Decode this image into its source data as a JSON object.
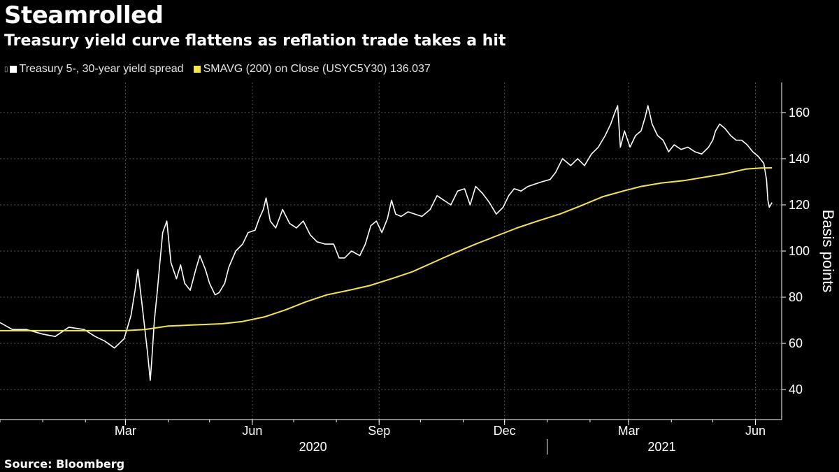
{
  "title": "Steamrolled",
  "subtitle": "Treasury yield curve flattens as reflation trade takes a hit",
  "legend": {
    "series1_label": "Treasury 5-, 30-year yield spread",
    "series2_label": "SMAVG (200)  on Close (USYC5Y30) 136.037"
  },
  "source": "Source: Bloomberg",
  "colors": {
    "background": "#000000",
    "spread": "#ffffff",
    "sma": "#f5e642",
    "grid": "#555555"
  },
  "chart_data": {
    "type": "line",
    "ylabel": "Basis points",
    "ylim": [
      27,
      173
    ],
    "yticks": [
      40,
      60,
      80,
      100,
      120,
      140,
      160
    ],
    "grid": true,
    "y_axis_side": "right",
    "x_month_labels": [
      {
        "label": "Mar",
        "date": "2020-03-01"
      },
      {
        "label": "Jun",
        "date": "2020-06-01"
      },
      {
        "label": "Sep",
        "date": "2020-09-01"
      },
      {
        "label": "Dec",
        "date": "2020-12-01"
      },
      {
        "label": "Mar",
        "date": "2021-03-01"
      },
      {
        "label": "Jun",
        "date": "2021-06-01"
      }
    ],
    "x_year_labels": [
      {
        "label": "2020",
        "date": "2020-07-15"
      },
      {
        "label": "2021",
        "date": "2021-03-25"
      }
    ],
    "xlim": [
      "2019-12-01",
      "2021-06-20"
    ],
    "series": [
      {
        "name": "Treasury 5-, 30-year yield spread",
        "points": [
          [
            "2019-12-01",
            69
          ],
          [
            "2019-12-10",
            66
          ],
          [
            "2019-12-20",
            66
          ],
          [
            "2020-01-01",
            64
          ],
          [
            "2020-01-10",
            63
          ],
          [
            "2020-01-20",
            67
          ],
          [
            "2020-01-31",
            66
          ],
          [
            "2020-02-08",
            63
          ],
          [
            "2020-02-15",
            61
          ],
          [
            "2020-02-22",
            58
          ],
          [
            "2020-02-29",
            62
          ],
          [
            "2020-03-05",
            72
          ],
          [
            "2020-03-08",
            83
          ],
          [
            "2020-03-10",
            92
          ],
          [
            "2020-03-13",
            77
          ],
          [
            "2020-03-17",
            56
          ],
          [
            "2020-03-19",
            44
          ],
          [
            "2020-03-20",
            52
          ],
          [
            "2020-03-22",
            70
          ],
          [
            "2020-03-24",
            82
          ],
          [
            "2020-03-26",
            95
          ],
          [
            "2020-03-28",
            108
          ],
          [
            "2020-03-31",
            113
          ],
          [
            "2020-04-03",
            95
          ],
          [
            "2020-04-07",
            88
          ],
          [
            "2020-04-10",
            94
          ],
          [
            "2020-04-13",
            86
          ],
          [
            "2020-04-17",
            83
          ],
          [
            "2020-04-21",
            92
          ],
          [
            "2020-04-24",
            98
          ],
          [
            "2020-04-28",
            92
          ],
          [
            "2020-05-01",
            86
          ],
          [
            "2020-05-05",
            81
          ],
          [
            "2020-05-08",
            82
          ],
          [
            "2020-05-12",
            86
          ],
          [
            "2020-05-15",
            93
          ],
          [
            "2020-05-20",
            100
          ],
          [
            "2020-05-25",
            103
          ],
          [
            "2020-05-29",
            108
          ],
          [
            "2020-06-03",
            109
          ],
          [
            "2020-06-06",
            114
          ],
          [
            "2020-06-09",
            118
          ],
          [
            "2020-06-11",
            123
          ],
          [
            "2020-06-14",
            113
          ],
          [
            "2020-06-18",
            110
          ],
          [
            "2020-06-23",
            118
          ],
          [
            "2020-06-28",
            112
          ],
          [
            "2020-07-03",
            110
          ],
          [
            "2020-07-08",
            113
          ],
          [
            "2020-07-13",
            107
          ],
          [
            "2020-07-18",
            104
          ],
          [
            "2020-07-24",
            103
          ],
          [
            "2020-07-30",
            103
          ],
          [
            "2020-08-03",
            97
          ],
          [
            "2020-08-07",
            97
          ],
          [
            "2020-08-12",
            100
          ],
          [
            "2020-08-18",
            98
          ],
          [
            "2020-08-22",
            103
          ],
          [
            "2020-08-26",
            111
          ],
          [
            "2020-08-30",
            113
          ],
          [
            "2020-09-03",
            108
          ],
          [
            "2020-09-07",
            114
          ],
          [
            "2020-09-10",
            122
          ],
          [
            "2020-09-13",
            116
          ],
          [
            "2020-09-17",
            115
          ],
          [
            "2020-09-22",
            117
          ],
          [
            "2020-09-27",
            116
          ],
          [
            "2020-10-02",
            115
          ],
          [
            "2020-10-08",
            118
          ],
          [
            "2020-10-13",
            124
          ],
          [
            "2020-10-18",
            122
          ],
          [
            "2020-10-23",
            120
          ],
          [
            "2020-10-28",
            126
          ],
          [
            "2020-11-02",
            127
          ],
          [
            "2020-11-06",
            120
          ],
          [
            "2020-11-10",
            128
          ],
          [
            "2020-11-15",
            125
          ],
          [
            "2020-11-20",
            121
          ],
          [
            "2020-11-25",
            116
          ],
          [
            "2020-11-30",
            119
          ],
          [
            "2020-12-04",
            124
          ],
          [
            "2020-12-08",
            127
          ],
          [
            "2020-12-13",
            126
          ],
          [
            "2020-12-18",
            128
          ],
          [
            "2020-12-23",
            129
          ],
          [
            "2020-12-28",
            130
          ],
          [
            "2021-01-03",
            131
          ],
          [
            "2021-01-07",
            134
          ],
          [
            "2021-01-12",
            140
          ],
          [
            "2021-01-18",
            137
          ],
          [
            "2021-01-23",
            140
          ],
          [
            "2021-01-28",
            137
          ],
          [
            "2021-02-02",
            142
          ],
          [
            "2021-02-07",
            145
          ],
          [
            "2021-02-12",
            150
          ],
          [
            "2021-02-16",
            155
          ],
          [
            "2021-02-19",
            160
          ],
          [
            "2021-02-21",
            163
          ],
          [
            "2021-02-23",
            145
          ],
          [
            "2021-02-26",
            152
          ],
          [
            "2021-03-02",
            145
          ],
          [
            "2021-03-06",
            150
          ],
          [
            "2021-03-10",
            152
          ],
          [
            "2021-03-13",
            158
          ],
          [
            "2021-03-15",
            163
          ],
          [
            "2021-03-18",
            155
          ],
          [
            "2021-03-22",
            150
          ],
          [
            "2021-03-26",
            148
          ],
          [
            "2021-03-30",
            143
          ],
          [
            "2021-04-03",
            146
          ],
          [
            "2021-04-08",
            144
          ],
          [
            "2021-04-13",
            145
          ],
          [
            "2021-04-18",
            143
          ],
          [
            "2021-04-23",
            142
          ],
          [
            "2021-04-28",
            145
          ],
          [
            "2021-05-01",
            148
          ],
          [
            "2021-05-03",
            152
          ],
          [
            "2021-05-06",
            155
          ],
          [
            "2021-05-10",
            153
          ],
          [
            "2021-05-14",
            150
          ],
          [
            "2021-05-18",
            148
          ],
          [
            "2021-05-22",
            148
          ],
          [
            "2021-05-26",
            146
          ],
          [
            "2021-05-30",
            143
          ],
          [
            "2021-06-03",
            141
          ],
          [
            "2021-06-07",
            138
          ],
          [
            "2021-06-09",
            131
          ],
          [
            "2021-06-10",
            122
          ],
          [
            "2021-06-11",
            119
          ],
          [
            "2021-06-13",
            121
          ]
        ]
      },
      {
        "name": "SMAVG (200)  on Close (USYC5Y30) 136.037",
        "points": [
          [
            "2019-12-01",
            65.5
          ],
          [
            "2020-01-15",
            65.5
          ],
          [
            "2020-02-29",
            65.5
          ],
          [
            "2020-03-15",
            66
          ],
          [
            "2020-04-01",
            67.5
          ],
          [
            "2020-04-20",
            68
          ],
          [
            "2020-05-10",
            68.5
          ],
          [
            "2020-05-25",
            69.5
          ],
          [
            "2020-06-10",
            71.5
          ],
          [
            "2020-06-25",
            74.5
          ],
          [
            "2020-07-10",
            78
          ],
          [
            "2020-07-25",
            81
          ],
          [
            "2020-08-10",
            83
          ],
          [
            "2020-08-25",
            85
          ],
          [
            "2020-09-10",
            88
          ],
          [
            "2020-09-25",
            91
          ],
          [
            "2020-10-10",
            95
          ],
          [
            "2020-10-25",
            99
          ],
          [
            "2020-11-10",
            103
          ],
          [
            "2020-11-25",
            106.5
          ],
          [
            "2020-12-10",
            110
          ],
          [
            "2020-12-25",
            113
          ],
          [
            "2021-01-10",
            116
          ],
          [
            "2021-01-25",
            119.5
          ],
          [
            "2021-02-10",
            123.5
          ],
          [
            "2021-02-25",
            126
          ],
          [
            "2021-03-10",
            128
          ],
          [
            "2021-03-25",
            129.5
          ],
          [
            "2021-04-10",
            130.5
          ],
          [
            "2021-04-25",
            132
          ],
          [
            "2021-05-10",
            133.5
          ],
          [
            "2021-05-25",
            135.5
          ],
          [
            "2021-06-05",
            136
          ],
          [
            "2021-06-13",
            136.037
          ]
        ]
      }
    ]
  }
}
